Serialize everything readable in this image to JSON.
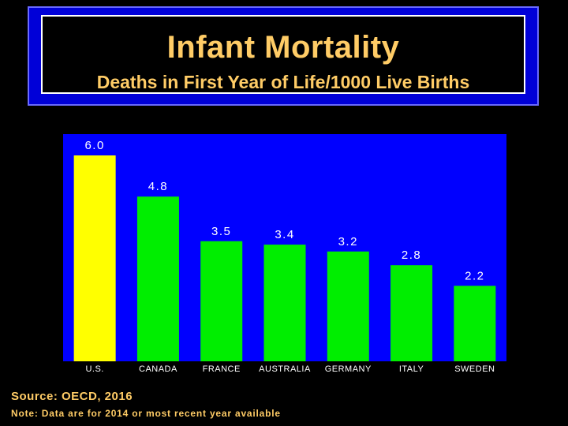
{
  "header": {
    "title": "Infant Mortality",
    "subtitle": "Deaths in First Year of Life/1000 Live Births"
  },
  "footer": {
    "source": "Source: OECD, 2016",
    "note": "Note: Data are for 2014 or most recent year available"
  },
  "colors": {
    "background": "#000000",
    "plot_background": "#0000ff",
    "title_frame": "#0000d8",
    "title_text": "#ffcc66",
    "highlight_bar": "#ffff00",
    "bar": "#00ee00",
    "label_text": "#ffffff"
  },
  "chart_data": {
    "type": "bar",
    "title": "Infant Mortality",
    "subtitle": "Deaths in First Year of Life/1000 Live Births",
    "categories": [
      "U.S.",
      "CANADA",
      "FRANCE",
      "AUSTRALIA",
      "GERMANY",
      "ITALY",
      "SWEDEN"
    ],
    "values": [
      6.0,
      4.8,
      3.5,
      3.4,
      3.2,
      2.8,
      2.2
    ],
    "value_labels": [
      "6.0",
      "4.8",
      "3.5",
      "3.4",
      "3.2",
      "2.8",
      "2.2"
    ],
    "highlight_index": 0,
    "xlabel": "",
    "ylabel": "",
    "ylim": [
      0,
      6.5
    ],
    "grid": false
  }
}
